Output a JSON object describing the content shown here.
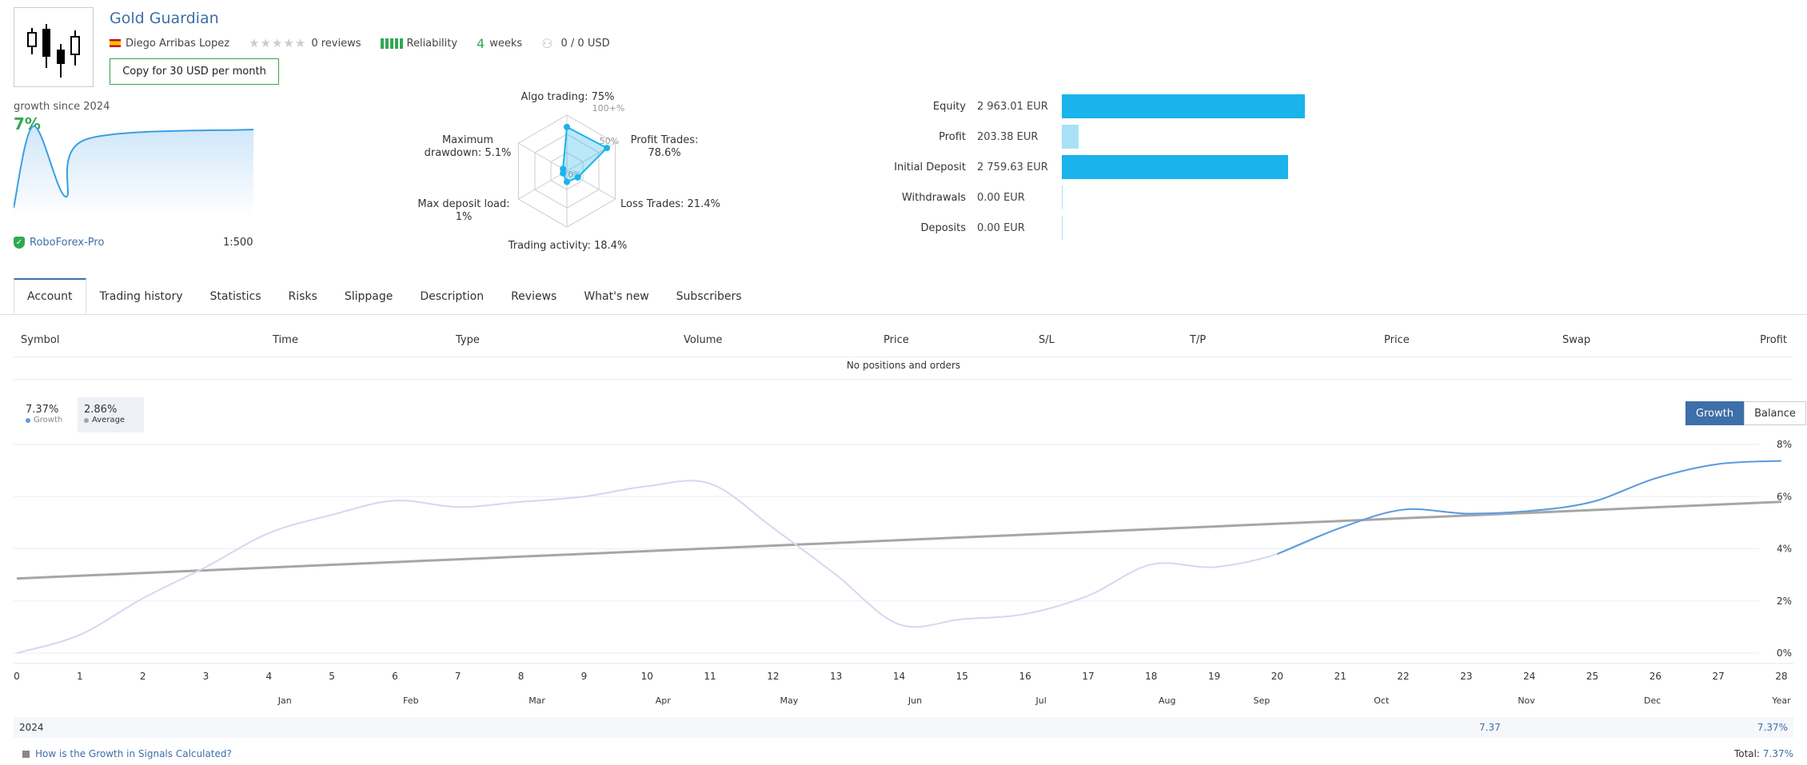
{
  "header": {
    "title": "Gold Guardian",
    "author": "Diego Arribas Lopez",
    "reviews": "0 reviews",
    "reliability_label": "Reliability",
    "weeks_num": "4",
    "weeks_label": "weeks",
    "subscribers": "0 / 0 USD",
    "copy_button": "Copy for 30 USD per month"
  },
  "growth_mini": {
    "label": "growth since 2024",
    "value": "7%",
    "broker": "RoboForex-Pro",
    "leverage": "1:500"
  },
  "radar": {
    "algo_trading": "Algo trading: 75%",
    "profit_trades_1": "Profit Trades:",
    "profit_trades_2": "78.6%",
    "loss_trades": "Loss Trades: 21.4%",
    "trading_activity": "Trading activity: 18.4%",
    "max_deposit_load_1": "Max deposit load:",
    "max_deposit_load_2": "1%",
    "max_drawdown_1": "Maximum",
    "max_drawdown_2": "drawdown: 5.1%",
    "ring_100": "100+%",
    "ring_50": "50%",
    "ring_0": "0%",
    "values": {
      "algo": 0.75,
      "profit": 0.786,
      "loss": 0.214,
      "activity": 0.184,
      "load": 0.01,
      "drawdown": 0.051
    }
  },
  "account_bars": [
    {
      "label": "Equity",
      "value": "2 963.01 EUR",
      "amount": 2963.01,
      "color": "#1ab3ec"
    },
    {
      "label": "Profit",
      "value": "203.38 EUR",
      "amount": 203.38,
      "color": "#a9e1f7"
    },
    {
      "label": "Initial Deposit",
      "value": "2 759.63 EUR",
      "amount": 2759.63,
      "color": "#1ab3ec"
    },
    {
      "label": "Withdrawals",
      "value": "0.00 EUR",
      "amount": 0,
      "color": "#a9e1f7"
    },
    {
      "label": "Deposits",
      "value": "0.00 EUR",
      "amount": 0,
      "color": "#a9e1f7"
    }
  ],
  "tabs": [
    "Account",
    "Trading history",
    "Statistics",
    "Risks",
    "Slippage",
    "Description",
    "Reviews",
    "What's new",
    "Subscribers"
  ],
  "table": {
    "headers": [
      "Symbol",
      "Time",
      "Type",
      "Volume",
      "Price",
      "S/L",
      "T/P",
      "Price",
      "Swap",
      "Profit"
    ],
    "empty": "No positions and orders"
  },
  "legend": {
    "growth_val": "7.37%",
    "growth_name": "Growth",
    "avg_val": "2.86%",
    "avg_name": "Average"
  },
  "toggle": {
    "growth": "Growth",
    "balance": "Balance"
  },
  "colors": {
    "growth": "#5b9be0",
    "growth_faded": "#d3d8f0",
    "average": "#a6a6a6",
    "accent": "#3d6fa8"
  },
  "chart_data": {
    "type": "line",
    "x": [
      0,
      1,
      2,
      3,
      4,
      5,
      6,
      7,
      8,
      9,
      10,
      11,
      12,
      13,
      14,
      15,
      16,
      17,
      18,
      19,
      20,
      21,
      22,
      23,
      24,
      25,
      26,
      27,
      28
    ],
    "x_ticks": [
      "0",
      "1",
      "2",
      "3",
      "4",
      "5",
      "6",
      "7",
      "8",
      "9",
      "10",
      "11",
      "12",
      "13",
      "14",
      "15",
      "16",
      "17",
      "18",
      "19",
      "20",
      "21",
      "22",
      "23",
      "24",
      "25",
      "26",
      "27",
      "28"
    ],
    "months": [
      {
        "label": "Jan",
        "x": 4
      },
      {
        "label": "Feb",
        "x": 6
      },
      {
        "label": "Mar",
        "x": 8
      },
      {
        "label": "Apr",
        "x": 10
      },
      {
        "label": "May",
        "x": 12
      },
      {
        "label": "Jun",
        "x": 14
      },
      {
        "label": "Jul",
        "x": 16
      },
      {
        "label": "Aug",
        "x": 18
      },
      {
        "label": "Sep",
        "x": 19.5
      },
      {
        "label": "Oct",
        "x": 21.4
      },
      {
        "label": "Nov",
        "x": 23.7
      },
      {
        "label": "Dec",
        "x": 25.7
      }
    ],
    "year_label": "Year",
    "y_ticks": [
      "0%",
      "2%",
      "4%",
      "6%",
      "8%"
    ],
    "ylim": [
      0,
      8
    ],
    "series": [
      {
        "name": "Growth",
        "values": [
          0,
          0.7,
          2.1,
          3.3,
          4.6,
          5.3,
          5.85,
          5.6,
          5.8,
          6.0,
          6.4,
          6.5,
          4.8,
          3.0,
          1.1,
          1.3,
          1.5,
          2.2,
          3.4,
          3.3,
          3.8,
          4.8,
          5.5,
          5.35,
          5.45,
          5.8,
          6.7,
          7.25,
          7.37
        ],
        "highlight_from": 20
      },
      {
        "name": "Average",
        "values_linear": [
          2.86,
          5.8
        ]
      }
    ]
  },
  "year_row": {
    "year": "2024",
    "nov_value": "7.37",
    "year_value": "7.37%"
  },
  "footer": {
    "link": "How is the Growth in Signals Calculated?",
    "total_label": "Total:",
    "total_value": "7.37%"
  },
  "mini_chart": {
    "values": [
      0,
      7.3,
      1,
      6.1,
      7
    ]
  }
}
